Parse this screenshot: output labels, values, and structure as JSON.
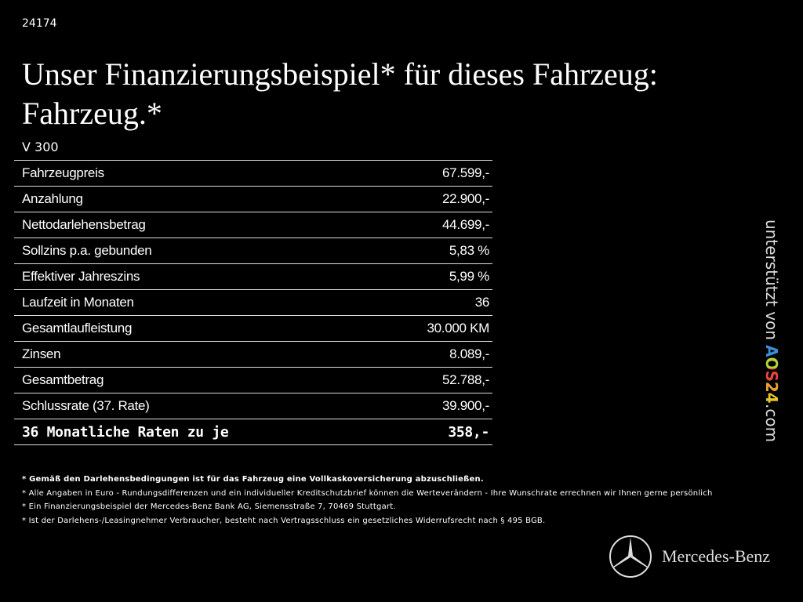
{
  "header": {
    "id": "24174",
    "title_lines": [
      "Unser Finanzierungsbeispiel* für dieses Fahrzeug:",
      "Fahrzeug.*"
    ],
    "model": "V 300"
  },
  "table": {
    "rows": [
      [
        "Fahrzeugpreis",
        "67.599,-"
      ],
      [
        "Anzahlung",
        "22.900,-"
      ],
      [
        "Nettodarlehensbetrag",
        "44.699,-"
      ],
      [
        "Sollzins p.a. gebunden",
        "5,83 %"
      ],
      [
        "Effektiver Jahreszins",
        "5,99 %"
      ],
      [
        "Laufzeit in Monaten",
        "36"
      ],
      [
        "Gesamtlaufleistung",
        "30.000 KM"
      ],
      [
        "Zinsen",
        "8.089,-"
      ],
      [
        "Gesamtbetrag",
        "52.788,-"
      ],
      [
        "Schlussrate (37. Rate)",
        "39.900,-"
      ],
      [
        "36 Monatliche Raten zu je",
        "358,-"
      ]
    ]
  },
  "footnotes": [
    "* Gemäß den Darlehensbedingungen ist für das Fahrzeug eine Vollkaskoversicherung abzuschließen.",
    "* Alle Angaben in Euro - Rundungsdifferenzen und ein individueller Kreditschutzbrief können die Werteverändern - Ihre Wunschrate errechnen wir Ihnen gerne persönlich",
    "* Ein Finanzierungsbeispiel der Mercedes-Benz Bank AG, Siemensstraße 7, 70469 Stuttgart.",
    "* Ist der Darlehens-/Leasingnehmer Verbraucher, besteht nach Vertragsschluss ein gesetzliches Widerrufsrecht nach § 495 BGB."
  ],
  "sidebar": {
    "prefix": "unterstützt von",
    "brand": "AOS24",
    "suffix": ".com"
  },
  "logo": {
    "text": "Mercedes-Benz"
  }
}
